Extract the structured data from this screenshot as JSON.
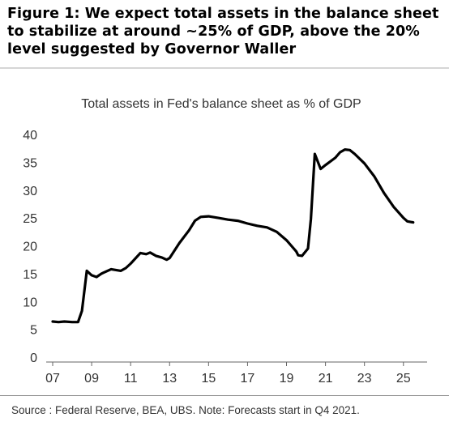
{
  "figure": {
    "title": "Figure 1: We expect total assets in the balance sheet to stabilize at around ~25% of GDP, above the 20% level suggested by Governor Waller",
    "source": "Source : Federal Reserve, BEA, UBS. Note: Forecasts start in Q4 2021."
  },
  "chart_data": {
    "type": "line",
    "title": "Total assets in Fed's balance sheet as % of GDP",
    "xlabel": "",
    "ylabel": "",
    "x_ticks": [
      "07",
      "09",
      "11",
      "13",
      "15",
      "17",
      "19",
      "21",
      "23",
      "25"
    ],
    "y_ticks": [
      0,
      5,
      10,
      15,
      20,
      25,
      30,
      35,
      40
    ],
    "xlim": [
      2007.0,
      2025.8
    ],
    "ylim": [
      0,
      40
    ],
    "grid": false,
    "legend": "none",
    "series": [
      {
        "color": "#000000",
        "x": [
          2007.0,
          2007.3,
          2007.6,
          2008.0,
          2008.3,
          2008.5,
          2008.75,
          2009.0,
          2009.25,
          2009.5,
          2010.0,
          2010.5,
          2010.75,
          2011.0,
          2011.5,
          2011.8,
          2012.0,
          2012.3,
          2012.6,
          2012.85,
          2013.0,
          2013.5,
          2014.0,
          2014.3,
          2014.6,
          2015.0,
          2015.5,
          2016.0,
          2016.5,
          2017.0,
          2017.5,
          2018.0,
          2018.5,
          2019.0,
          2019.25,
          2019.5,
          2019.6,
          2019.8,
          2020.1,
          2020.25,
          2020.45,
          2020.75,
          2021.0,
          2021.5,
          2021.75,
          2022.0,
          2022.25,
          2022.5,
          2023.0,
          2023.5,
          2024.0,
          2024.5,
          2025.0,
          2025.2,
          2025.5
        ],
        "y": [
          6.4,
          6.3,
          6.4,
          6.3,
          6.3,
          8.3,
          15.5,
          14.7,
          14.4,
          15.0,
          15.8,
          15.5,
          16.0,
          16.8,
          18.7,
          18.5,
          18.8,
          18.2,
          17.9,
          17.5,
          17.8,
          20.5,
          22.8,
          24.5,
          25.2,
          25.3,
          25.0,
          24.7,
          24.5,
          24.0,
          23.6,
          23.3,
          22.5,
          21.0,
          20.0,
          19.0,
          18.3,
          18.2,
          19.5,
          24.8,
          36.5,
          33.8,
          34.5,
          35.8,
          36.8,
          37.3,
          37.2,
          36.5,
          34.8,
          32.5,
          29.5,
          27.0,
          25.0,
          24.4,
          24.2
        ]
      }
    ]
  }
}
